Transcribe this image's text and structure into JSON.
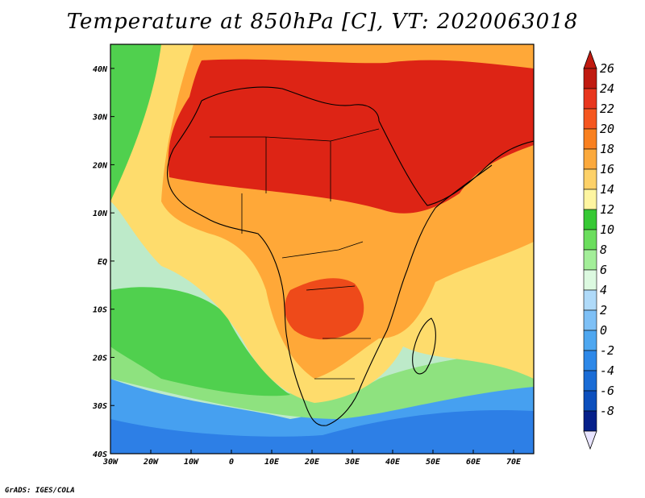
{
  "title": "Temperature at 850hPa [C], VT: 2020063018",
  "credit": "GrADS: IGES/COLA",
  "map": {
    "lon_range": [
      -30,
      75
    ],
    "lat_range": [
      -40,
      45
    ],
    "x_ticks": [
      "30W",
      "20W",
      "10W",
      "0",
      "10E",
      "20E",
      "30E",
      "40E",
      "50E",
      "60E",
      "70E"
    ],
    "y_ticks": [
      "40N",
      "30N",
      "20N",
      "10N",
      "EQ",
      "10S",
      "20S",
      "30S",
      "40S"
    ],
    "layers": [
      {
        "name": "ocean-cool-south",
        "color": "#46a0f0"
      },
      {
        "name": "ocean-green-west",
        "color": "#50d04e"
      },
      {
        "name": "mid-yellow",
        "color": "#fedc6c"
      },
      {
        "name": "inland-orange",
        "color": "#ffa838"
      },
      {
        "name": "sahara-red",
        "color": "#dd2415"
      }
    ]
  },
  "colorbar": {
    "ticks": [
      "26",
      "24",
      "22",
      "20",
      "18",
      "16",
      "14",
      "12",
      "10",
      "8",
      "6",
      "4",
      "2",
      "0",
      "-2",
      "-4",
      "-6",
      "-8"
    ],
    "colors": [
      "#c01a10",
      "#e8361d",
      "#f5561f",
      "#f9801f",
      "#fba93c",
      "#fdd168",
      "#fef5a0",
      "#36c934",
      "#6bde5d",
      "#a3ee99",
      "#dcf9e0",
      "#afdaf9",
      "#7ec0f6",
      "#4ea7f0",
      "#2d88e8",
      "#1a6cd6",
      "#0c4fbd",
      "#06208a"
    ]
  }
}
